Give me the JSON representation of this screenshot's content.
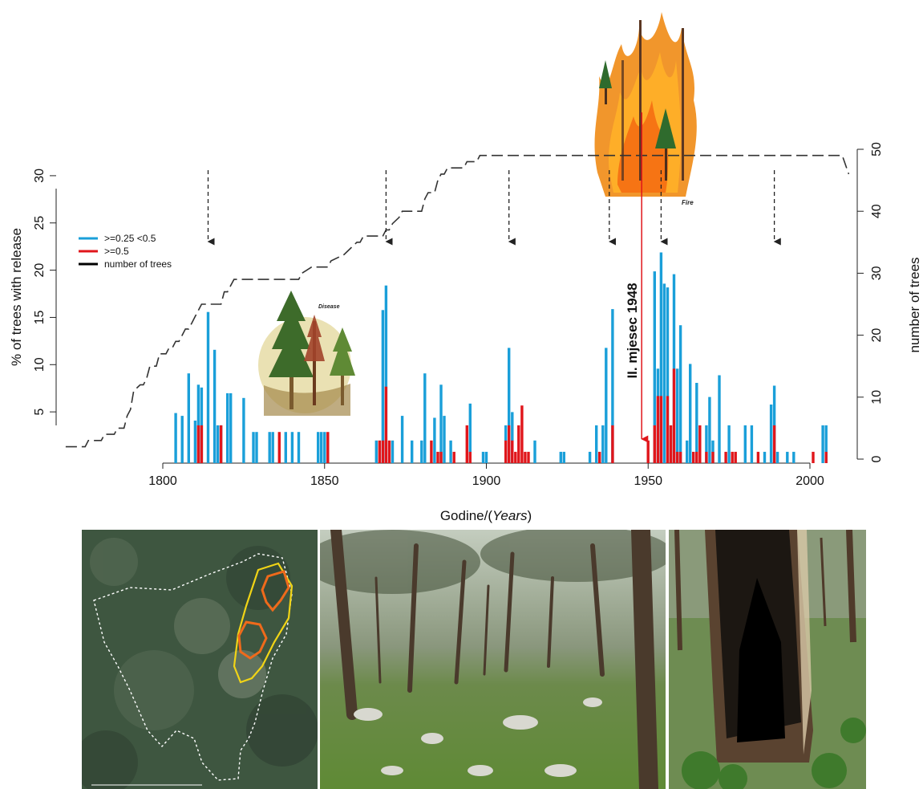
{
  "chart_data": {
    "type": "bar",
    "xlabel_main": "Godine/(",
    "xlabel_italic": "Years",
    "xlabel_close": ")",
    "ylabel_left": "% of trees with release",
    "ylabel_right": "number of trees",
    "xlim": [
      1770,
      2012
    ],
    "ylim_left": [
      0,
      32
    ],
    "ylim_right": [
      0,
      50
    ],
    "x_ticks": [
      "1800",
      "1850",
      "1900",
      "1950",
      "2000"
    ],
    "y_left_ticks": [
      "5",
      "10",
      "15",
      "20",
      "25",
      "30"
    ],
    "y_right_ticks": [
      "0",
      "10",
      "20",
      "30",
      "40",
      "50"
    ],
    "legend": {
      "placement": "top-left",
      "items": [
        {
          "label": ">=0.25 <0.5",
          "color": "#1a9fd9"
        },
        {
          "label": ">=0.5",
          "color": "#e0161b"
        },
        {
          "label": "number of trees",
          "color": "#000000"
        }
      ]
    },
    "series": [
      {
        "name": ">=0.25 <0.5",
        "color": "#1a9fd9",
        "points": [
          [
            1804,
            5.3
          ],
          [
            1806,
            5.0
          ],
          [
            1808,
            9.5
          ],
          [
            1810,
            4.5
          ],
          [
            1811,
            8.3
          ],
          [
            1812,
            8.0
          ],
          [
            1814,
            16.0
          ],
          [
            1816,
            12.0
          ],
          [
            1817,
            4.0
          ],
          [
            1818,
            4.0
          ],
          [
            1820,
            7.4
          ],
          [
            1821,
            7.4
          ],
          [
            1825,
            6.9
          ],
          [
            1828,
            3.3
          ],
          [
            1829,
            3.3
          ],
          [
            1833,
            3.3
          ],
          [
            1834,
            3.3
          ],
          [
            1838,
            3.3
          ],
          [
            1840,
            3.3
          ],
          [
            1842,
            3.3
          ],
          [
            1848,
            3.3
          ],
          [
            1849,
            3.3
          ],
          [
            1850,
            3.3
          ],
          [
            1866,
            2.4
          ],
          [
            1868,
            16.2
          ],
          [
            1869,
            18.8
          ],
          [
            1871,
            2.4
          ],
          [
            1874,
            5.0
          ],
          [
            1877,
            2.4
          ],
          [
            1880,
            2.4
          ],
          [
            1881,
            9.5
          ],
          [
            1884,
            4.8
          ],
          [
            1886,
            8.3
          ],
          [
            1887,
            5.0
          ],
          [
            1889,
            2.4
          ],
          [
            1895,
            6.3
          ],
          [
            1899,
            1.2
          ],
          [
            1900,
            1.2
          ],
          [
            1906,
            4.0
          ],
          [
            1907,
            12.2
          ],
          [
            1908,
            5.4
          ],
          [
            1915,
            2.4
          ],
          [
            1923,
            1.2
          ],
          [
            1924,
            1.2
          ],
          [
            1932,
            1.2
          ],
          [
            1934,
            4.0
          ],
          [
            1936,
            4.0
          ],
          [
            1937,
            12.2
          ],
          [
            1939,
            16.3
          ],
          [
            1952,
            20.3
          ],
          [
            1953,
            10.0
          ],
          [
            1954,
            22.3
          ],
          [
            1955,
            19.0
          ],
          [
            1956,
            18.6
          ],
          [
            1958,
            20.0
          ],
          [
            1959,
            10.0
          ],
          [
            1960,
            14.6
          ],
          [
            1962,
            2.4
          ],
          [
            1963,
            10.5
          ],
          [
            1965,
            8.5
          ],
          [
            1968,
            4.0
          ],
          [
            1969,
            7.0
          ],
          [
            1970,
            2.4
          ],
          [
            1972,
            9.3
          ],
          [
            1975,
            4.0
          ],
          [
            1980,
            4.0
          ],
          [
            1982,
            4.0
          ],
          [
            1986,
            1.2
          ],
          [
            1988,
            6.2
          ],
          [
            1989,
            8.2
          ],
          [
            1990,
            1.2
          ],
          [
            1993,
            1.2
          ],
          [
            1995,
            1.2
          ],
          [
            2004,
            4.0
          ],
          [
            2005,
            4.0
          ]
        ]
      },
      {
        "name": ">=0.5",
        "color": "#e0161b",
        "points": [
          [
            1811,
            4.0
          ],
          [
            1812,
            4.0
          ],
          [
            1818,
            4.0
          ],
          [
            1836,
            3.3
          ],
          [
            1851,
            3.3
          ],
          [
            1867,
            2.4
          ],
          [
            1868,
            2.4
          ],
          [
            1869,
            8.1
          ],
          [
            1870,
            2.4
          ],
          [
            1883,
            2.4
          ],
          [
            1885,
            1.2
          ],
          [
            1886,
            1.2
          ],
          [
            1890,
            1.2
          ],
          [
            1894,
            4.0
          ],
          [
            1895,
            1.2
          ],
          [
            1906,
            2.4
          ],
          [
            1907,
            4.0
          ],
          [
            1908,
            2.4
          ],
          [
            1909,
            1.2
          ],
          [
            1910,
            4.0
          ],
          [
            1911,
            6.1
          ],
          [
            1912,
            1.2
          ],
          [
            1913,
            1.2
          ],
          [
            1935,
            1.2
          ],
          [
            1939,
            4.0
          ],
          [
            1950,
            2.4
          ],
          [
            1952,
            4.0
          ],
          [
            1953,
            7.1
          ],
          [
            1954,
            7.1
          ],
          [
            1956,
            7.1
          ],
          [
            1957,
            4.0
          ],
          [
            1958,
            10.0
          ],
          [
            1959,
            1.2
          ],
          [
            1960,
            1.2
          ],
          [
            1964,
            1.2
          ],
          [
            1965,
            1.2
          ],
          [
            1966,
            4.0
          ],
          [
            1968,
            1.2
          ],
          [
            1970,
            1.2
          ],
          [
            1974,
            1.2
          ],
          [
            1976,
            1.2
          ],
          [
            1977,
            1.2
          ],
          [
            1984,
            1.2
          ],
          [
            1989,
            4.0
          ],
          [
            2001,
            1.2
          ],
          [
            2005,
            1.2
          ]
        ]
      }
    ],
    "tree_count_line": {
      "name": "number of trees",
      "style": "dashed",
      "points": [
        [
          1770,
          2
        ],
        [
          1776,
          2
        ],
        [
          1777,
          3
        ],
        [
          1781,
          3
        ],
        [
          1782,
          4
        ],
        [
          1785,
          4
        ],
        [
          1786,
          5
        ],
        [
          1788,
          5
        ],
        [
          1789,
          7
        ],
        [
          1790,
          8
        ],
        [
          1791,
          11
        ],
        [
          1793,
          12
        ],
        [
          1794,
          12
        ],
        [
          1795,
          13
        ],
        [
          1796,
          15
        ],
        [
          1798,
          15
        ],
        [
          1799,
          17
        ],
        [
          1801,
          17
        ],
        [
          1802,
          18
        ],
        [
          1803,
          18
        ],
        [
          1804,
          19
        ],
        [
          1805,
          19
        ],
        [
          1806,
          20
        ],
        [
          1807,
          21
        ],
        [
          1808,
          21
        ],
        [
          1809,
          22
        ],
        [
          1810,
          23
        ],
        [
          1812,
          25
        ],
        [
          1818,
          25
        ],
        [
          1819,
          27
        ],
        [
          1820,
          27
        ],
        [
          1821,
          28
        ],
        [
          1822,
          29
        ],
        [
          1842,
          29
        ],
        [
          1843,
          30
        ],
        [
          1846,
          31
        ],
        [
          1851,
          31
        ],
        [
          1852,
          32
        ],
        [
          1856,
          33
        ],
        [
          1858,
          34
        ],
        [
          1860,
          35
        ],
        [
          1861,
          35
        ],
        [
          1862,
          36
        ],
        [
          1868,
          36
        ],
        [
          1869,
          37
        ],
        [
          1870,
          37
        ],
        [
          1871,
          38
        ],
        [
          1873,
          39
        ],
        [
          1874,
          40
        ],
        [
          1880,
          40
        ],
        [
          1881,
          42
        ],
        [
          1882,
          43
        ],
        [
          1884,
          43
        ],
        [
          1885,
          45
        ],
        [
          1886,
          46
        ],
        [
          1887,
          46
        ],
        [
          1888,
          47
        ],
        [
          1893,
          47
        ],
        [
          1894,
          48
        ],
        [
          1897,
          48
        ],
        [
          1898,
          49
        ],
        [
          2010,
          49
        ],
        [
          2012,
          46
        ]
      ]
    },
    "disturbance_arrows": [
      1814,
      1869,
      1907,
      1938,
      1954,
      1989
    ],
    "event_annotation": {
      "text": "II. mjesec 1948",
      "year": 1948,
      "color": "#e0161b"
    },
    "illustrations": [
      {
        "label": "Disease",
        "icon": "diseased-trees-illustration"
      },
      {
        "label": "Fire",
        "icon": "forest-fire-illustration"
      }
    ]
  },
  "photos": [
    {
      "name": "aerial-map-photo",
      "icon": "aerial-map"
    },
    {
      "name": "forest-slope-photo",
      "icon": "pine-forest"
    },
    {
      "name": "burnt-trunk-photo",
      "icon": "fire-scarred-trunk"
    }
  ],
  "colors": {
    "blue": "#1a9fd9",
    "red": "#e0161b",
    "line": "#333333"
  }
}
